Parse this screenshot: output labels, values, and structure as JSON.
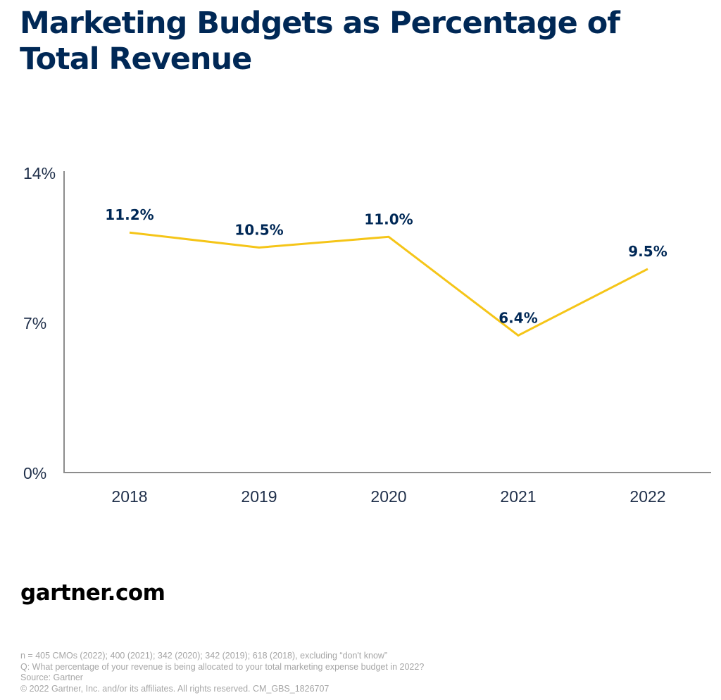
{
  "title": "Marketing Budgets as Percentage of Total Revenue",
  "brand": "gartner.com",
  "footnotes": {
    "n": "n =  405 CMOs (2022); 400 (2021); 342 (2020); 342 (2019); 618 (2018), excluding “don't know”",
    "question": "Q: What percentage of your revenue is being allocated to your total marketing expense budget in 2022?",
    "source": "Source: Gartner",
    "copyright": "© 2022 Gartner, Inc. and/or its affiliates. All rights reserved. CM_GBS_1826707"
  },
  "colors": {
    "title": "#002856",
    "line": "#f5c518",
    "axis": "#8c8c8c",
    "tick_text": "#1f2f4a",
    "data_label": "#002856"
  },
  "chart_data": {
    "type": "line",
    "title": "Marketing Budgets as Percentage of Total Revenue",
    "xlabel": "",
    "ylabel": "",
    "categories": [
      "2018",
      "2019",
      "2020",
      "2021",
      "2022"
    ],
    "series": [
      {
        "values": [
          11.2,
          10.5,
          11.0,
          6.4,
          9.5
        ],
        "labels": [
          "11.2%",
          "10.5%",
          "11.0%",
          "6.4%",
          "9.5%"
        ]
      }
    ],
    "ylim": [
      0,
      14
    ],
    "yticks": [
      0,
      7,
      14
    ],
    "ytick_labels": [
      "0%",
      "7%",
      "14%"
    ],
    "grid": false,
    "legend": "none"
  }
}
